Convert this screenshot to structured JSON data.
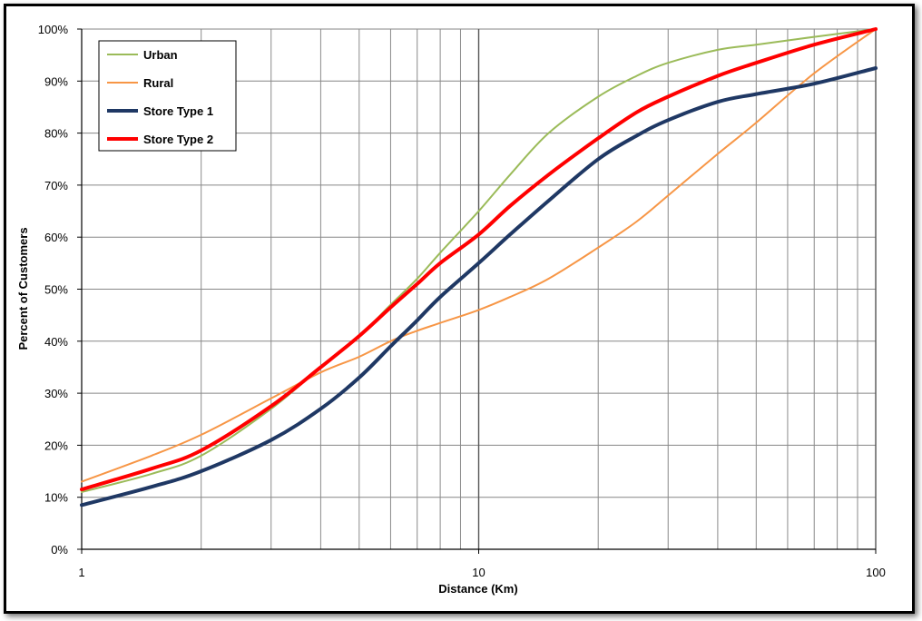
{
  "chart_data": {
    "type": "line",
    "xscale": "log",
    "xlim": [
      1,
      100
    ],
    "ylim": [
      0,
      100
    ],
    "xlabel": "Distance (Km)",
    "ylabel": "Percent of Customers",
    "x_tick_labels": [
      "1",
      "10",
      "100"
    ],
    "x_ticks": [
      1,
      10,
      100
    ],
    "y_ticks": [
      0,
      10,
      20,
      30,
      40,
      50,
      60,
      70,
      80,
      90,
      100
    ],
    "y_tick_labels": [
      "0%",
      "10%",
      "20%",
      "30%",
      "40%",
      "50%",
      "60%",
      "70%",
      "80%",
      "90%",
      "100%"
    ],
    "grid": true,
    "legend_position": "top-left",
    "series": [
      {
        "name": "Urban",
        "color": "#9BBB59",
        "width": 2,
        "x": [
          1,
          1.5,
          2,
          3,
          4,
          5,
          6,
          7,
          8,
          10,
          12,
          15,
          20,
          25,
          30,
          40,
          50,
          70,
          100
        ],
        "y": [
          11,
          14.5,
          18,
          27,
          35,
          41,
          47,
          52,
          57,
          65,
          72,
          80,
          87,
          91,
          93.5,
          96,
          97,
          98.5,
          100
        ]
      },
      {
        "name": "Rural",
        "color": "#F79646",
        "width": 2,
        "x": [
          1,
          1.5,
          2,
          3,
          4,
          5,
          6,
          7,
          8,
          10,
          12,
          15,
          20,
          25,
          30,
          40,
          50,
          70,
          100
        ],
        "y": [
          13,
          18,
          22,
          29,
          34,
          37,
          40,
          42,
          43.5,
          46,
          48.5,
          52,
          58,
          63,
          68,
          76,
          82,
          91.5,
          100
        ]
      },
      {
        "name": "Store Type 1",
        "color": "#1F3864",
        "width": 4,
        "x": [
          1,
          1.5,
          2,
          3,
          4,
          5,
          6,
          7,
          8,
          10,
          12,
          15,
          20,
          25,
          30,
          40,
          50,
          70,
          100
        ],
        "y": [
          8.5,
          12,
          15,
          21,
          27,
          33,
          39,
          44,
          48.5,
          55,
          60.5,
          67,
          75,
          79.5,
          82.5,
          86,
          87.5,
          89.5,
          92.5
        ]
      },
      {
        "name": "Store Type 2",
        "color": "#FF0000",
        "width": 4,
        "x": [
          1,
          1.5,
          2,
          3,
          4,
          5,
          6,
          7,
          8,
          10,
          12,
          15,
          20,
          25,
          30,
          40,
          50,
          70,
          100
        ],
        "y": [
          11.5,
          15.5,
          19,
          27.5,
          35,
          41,
          46.5,
          51,
          55,
          60.5,
          66,
          72,
          79,
          84,
          87,
          91,
          93.5,
          97,
          100
        ]
      }
    ]
  }
}
